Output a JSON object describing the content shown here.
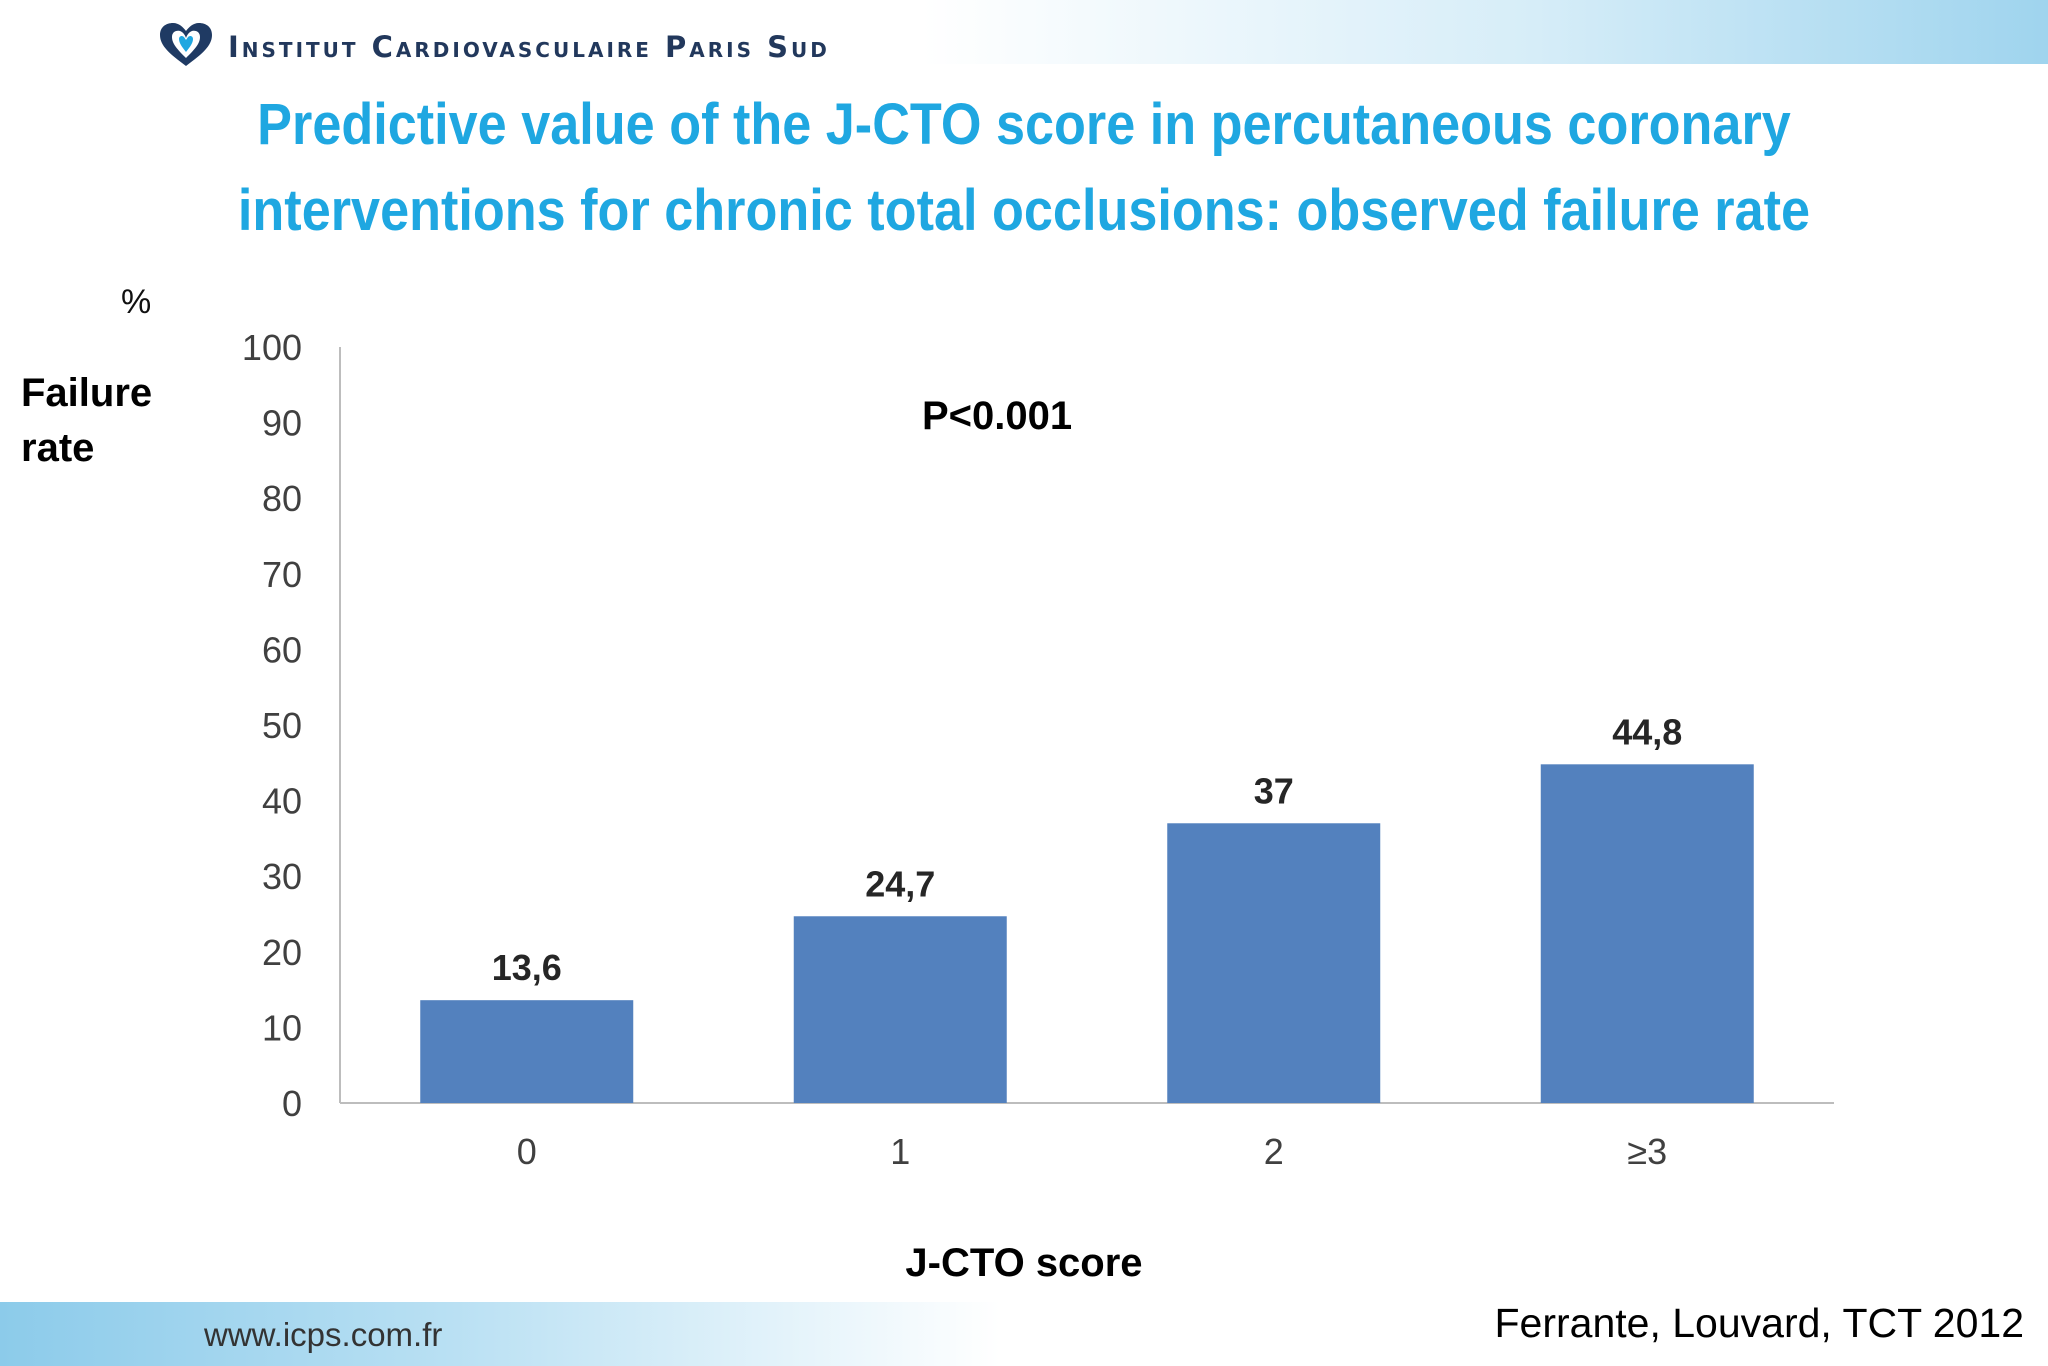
{
  "header": {
    "institute": "Institut Cardiovasculaire Paris Sud",
    "title_lines": [
      "Predictive value of the J-CTO score in percutaneous coronary",
      "interventions for chronic total occlusions: observed failure rate"
    ]
  },
  "colors": {
    "accent": "#1fa7e1",
    "bar": "#5381be",
    "band": "#9fd4ee"
  },
  "chart_data": {
    "type": "bar",
    "title": "",
    "ylabel": "Failure rate",
    "yunit": "%",
    "xlabel": "J-CTO score",
    "categories": [
      "0",
      "1",
      "2",
      "≥3"
    ],
    "values": [
      13.6,
      24.7,
      37,
      44.8
    ],
    "value_labels": [
      "13,6",
      "24,7",
      "37",
      "44,8"
    ],
    "ylim": [
      0,
      100
    ],
    "yticks": [
      0,
      10,
      20,
      30,
      40,
      50,
      60,
      70,
      80,
      90,
      100
    ],
    "grid": false,
    "legend": "none",
    "annotation": "P<0.001"
  },
  "footer": {
    "url": "www.icps.com.fr",
    "source": "Ferrante, Louvard, TCT 2012"
  }
}
